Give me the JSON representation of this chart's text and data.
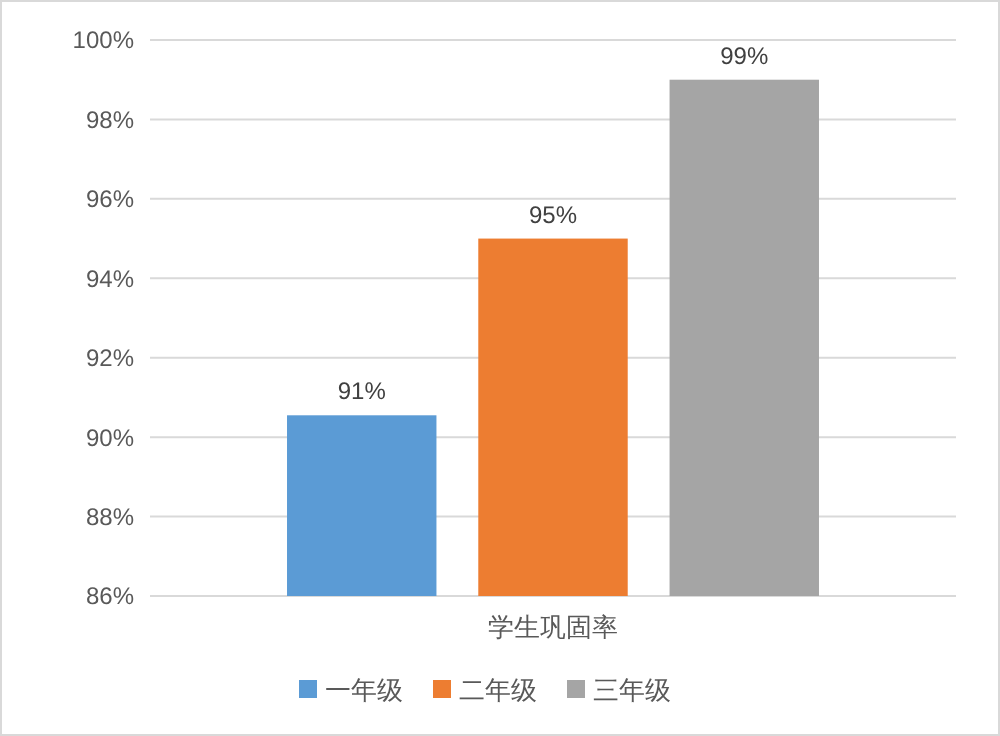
{
  "chart_data": {
    "type": "bar",
    "categories": [
      "学生巩固率"
    ],
    "series": [
      {
        "name": "一年级",
        "color": "#5b9bd5",
        "values": [
          90.55
        ],
        "value_labels": [
          "91%"
        ]
      },
      {
        "name": "二年级",
        "color": "#ed7d31",
        "values": [
          95
        ],
        "value_labels": [
          "95%"
        ]
      },
      {
        "name": "三年级",
        "color": "#a5a5a5",
        "values": [
          99
        ],
        "value_labels": [
          "99%"
        ]
      }
    ],
    "ylim": [
      86,
      100
    ],
    "yticks": [
      {
        "value": 86,
        "label": "86%"
      },
      {
        "value": 88,
        "label": "88%"
      },
      {
        "value": 90,
        "label": "90%"
      },
      {
        "value": 92,
        "label": "92%"
      },
      {
        "value": 94,
        "label": "94%"
      },
      {
        "value": 96,
        "label": "96%"
      },
      {
        "value": 98,
        "label": "98%"
      },
      {
        "value": 100,
        "label": "100%"
      }
    ],
    "grid": "y",
    "legend": "bottom"
  }
}
